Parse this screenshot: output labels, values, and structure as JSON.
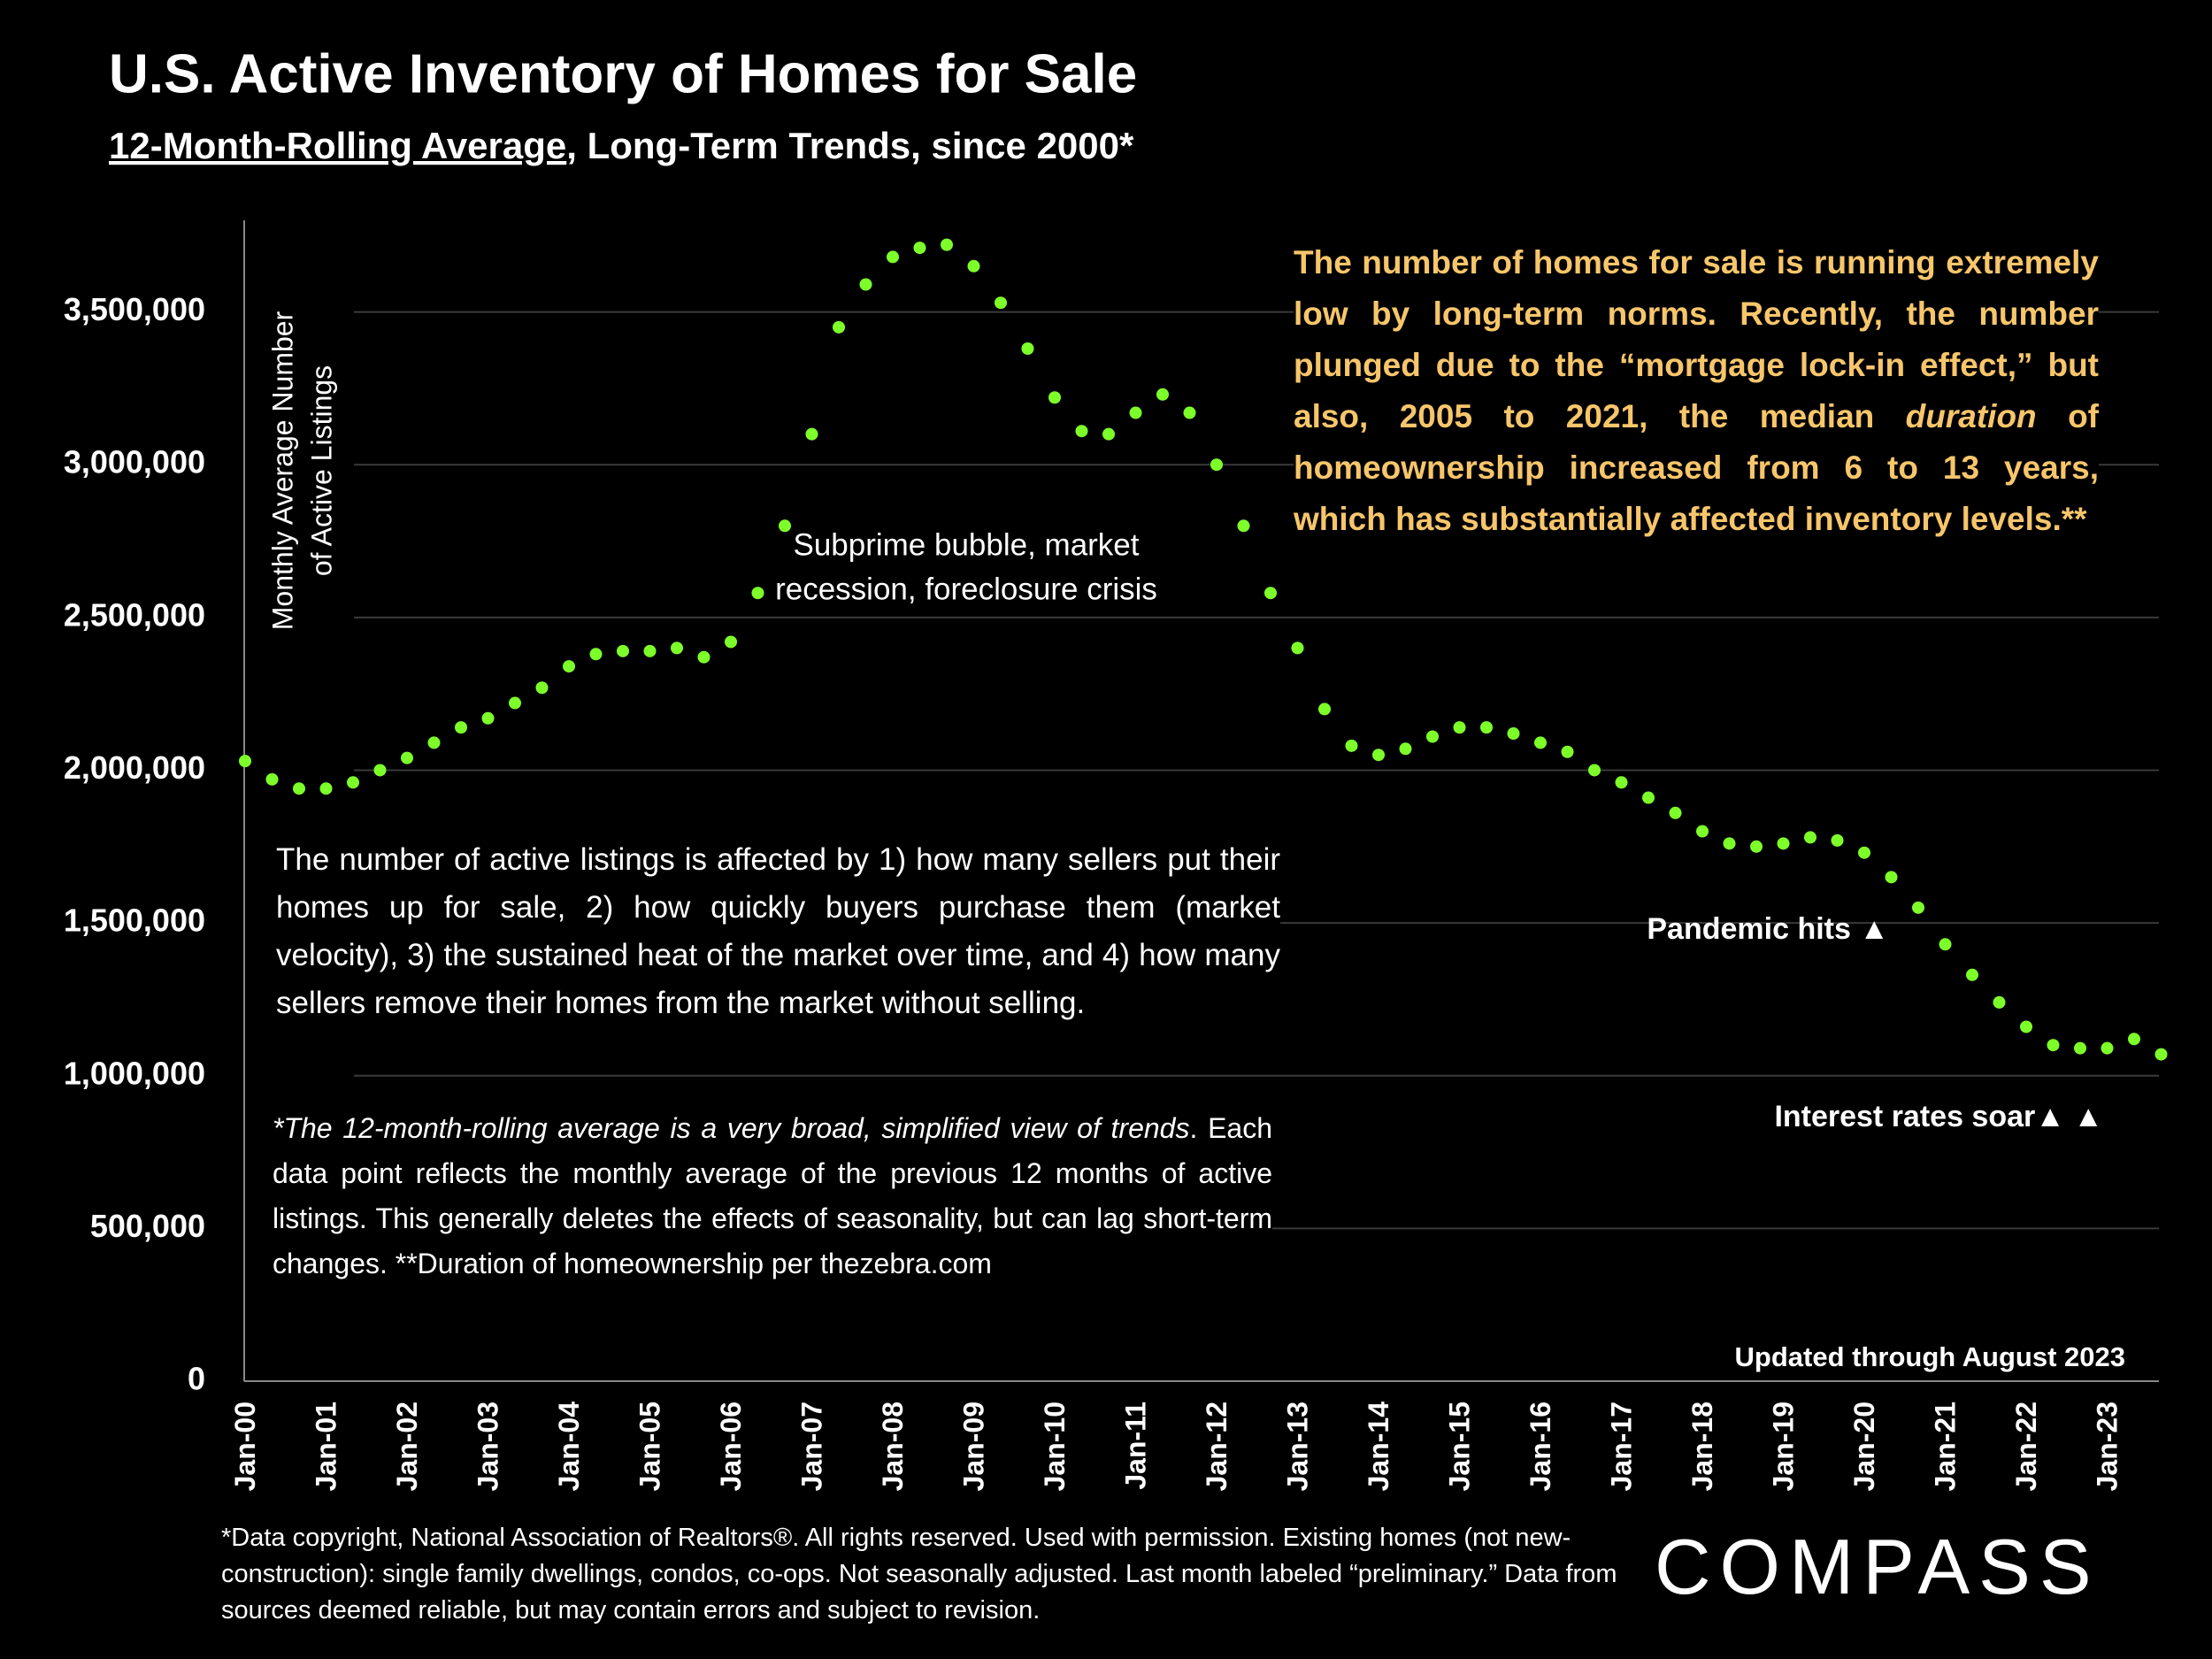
{
  "chart_data": {
    "type": "scatter-line",
    "title": "U.S. Active Inventory of Homes for Sale",
    "subtitle": [
      "12-Month-Rolling Average",
      ", Long-Term Trends, since 2000*"
    ],
    "y_axis_label": [
      "Monthly Average Number",
      "of Active  Listings"
    ],
    "color": "#7dff2a",
    "categories": [
      "Jan-00",
      null,
      null,
      "Jan-01",
      null,
      null,
      "Jan-02",
      null,
      null,
      "Jan-03",
      null,
      null,
      "Jan-04",
      null,
      null,
      "Jan-05",
      null,
      null,
      "Jan-06",
      null,
      null,
      "Jan-07",
      null,
      null,
      "Jan-08",
      null,
      null,
      "Jan-09",
      null,
      null,
      "Jan-10",
      null,
      null,
      "Jan-11",
      null,
      null,
      "Jan-12",
      null,
      null,
      "Jan-13",
      null,
      null,
      "Jan-14",
      null,
      null,
      "Jan-15",
      null,
      null,
      "Jan-16",
      null,
      null,
      "Jan-17",
      null,
      null,
      "Jan-18",
      null,
      null,
      "Jan-19",
      null,
      null,
      "Jan-20",
      null,
      null,
      "Jan-21",
      null,
      null,
      "Jan-22",
      null,
      null,
      "Jan-23",
      null,
      null
    ],
    "values": [
      2030000,
      1970000,
      1940000,
      1940000,
      1960000,
      2000000,
      2040000,
      2090000,
      2140000,
      2170000,
      2220000,
      2270000,
      2340000,
      2380000,
      2390000,
      2390000,
      2400000,
      2370000,
      2420000,
      2580000,
      2800000,
      3100000,
      3450000,
      3590000,
      3680000,
      3710000,
      3720000,
      3650000,
      3530000,
      3380000,
      3220000,
      3110000,
      3100000,
      3170000,
      3230000,
      3170000,
      3000000,
      2800000,
      2580000,
      2400000,
      2200000,
      2080000,
      2050000,
      2070000,
      2110000,
      2140000,
      2140000,
      2120000,
      2090000,
      2060000,
      2000000,
      1960000,
      1910000,
      1860000,
      1800000,
      1760000,
      1750000,
      1760000,
      1780000,
      1770000,
      1730000,
      1650000,
      1550000,
      1430000,
      1330000,
      1240000,
      1160000,
      1100000,
      1090000,
      1090000,
      1120000,
      1070000
    ],
    "ylim": [
      0,
      3800000
    ],
    "yticks": [
      0,
      {
        "value": 500000,
        "label": "500,000"
      },
      {
        "value": 1000000,
        "label": "1,000,000"
      },
      {
        "value": 1500000,
        "label": "1,500,000"
      },
      {
        "value": 2000000,
        "label": "2,000,000"
      },
      {
        "value": 2500000,
        "label": "2,500,000"
      },
      {
        "value": 3000000,
        "label": "3,000,000"
      },
      {
        "value": 3500000,
        "label": "3,500,000"
      }
    ],
    "grid": true,
    "annotations": {
      "subprime": [
        "Subprime bubble, market",
        "recession, foreclosure crisis"
      ],
      "pandemic": "Pandemic  hits ▲",
      "rates": "Interest rates soar▲ ▲",
      "updated": "Updated through August 2023"
    },
    "right_note": [
      "The number of homes for sale is running extremely low by long-term norms. Recently, the number plunged due to the “mortgage lock-in effect,” but also, 2005 to 2021, the median ",
      "duration",
      " of homeownership increased from 6 to 13 years, which has substantially affected inventory levels.**"
    ],
    "left_note": "The number of active listings is affected by 1) how many sellers put their homes up for sale, 2) how quickly buyers purchase them (market velocity), 3) the sustained heat of the market over time, and 4) how many sellers remove their homes from the market without selling.",
    "left_footnote": [
      "*The 12-month-rolling average is a very broad, simplified view of trends",
      ". Each data point reflects the monthly average of the previous 12 months of active listings. This generally deletes the effects of seasonality, but can lag short-term changes. ",
      "**Duration of homeownership per thezebra.com"
    ],
    "source": "*Data copyright, National Association of Realtors®. All rights reserved. Used with permission. Existing homes (not new-construction): single family dwellings, condos, co-ops. Not seasonally adjusted. Last month labeled “preliminary.” Data from sources deemed reliable, but may contain errors and subject to revision.",
    "logo": "COMPASS"
  }
}
